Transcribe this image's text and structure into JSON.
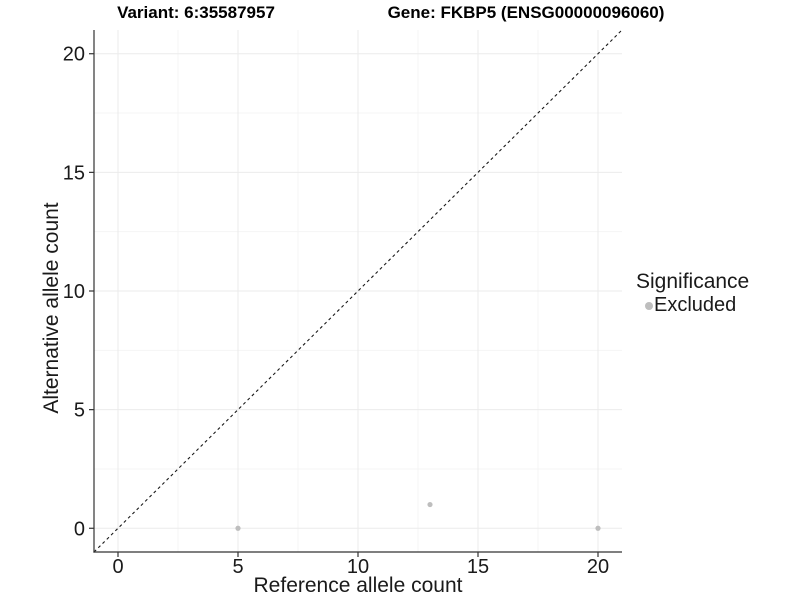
{
  "figure": {
    "titles": {
      "left": "Variant: 6:35587957",
      "right": "Gene: FKBP5 (ENSG00000096060)"
    }
  },
  "chart_data": {
    "type": "scatter",
    "title_left": "Variant: 6:35587957",
    "title_right": "Gene: FKBP5 (ENSG00000096060)",
    "xlabel": "Reference allele count",
    "ylabel": "Alternative allele count",
    "x_domain": [
      -1,
      21
    ],
    "y_domain": [
      -1,
      21
    ],
    "x_ticks": [
      0,
      5,
      10,
      15,
      20
    ],
    "y_ticks": [
      0,
      5,
      10,
      15,
      20
    ],
    "x_minor_ticks": [
      2.5,
      7.5,
      12.5,
      17.5
    ],
    "y_minor_ticks": [
      2.5,
      7.5,
      12.5,
      17.5
    ],
    "grid": true,
    "points": [
      {
        "x": 5,
        "y": 0,
        "significance": "Excluded"
      },
      {
        "x": 13,
        "y": 1,
        "significance": "Excluded"
      },
      {
        "x": 20,
        "y": 0,
        "significance": "Excluded"
      }
    ],
    "reference_line": {
      "type": "identity",
      "style": "dashed",
      "from": [
        -1,
        -1
      ],
      "to": [
        21,
        21
      ]
    },
    "legend": {
      "title": "Significance",
      "position": "right",
      "items": [
        {
          "label": "Excluded",
          "color": "#bebebe"
        }
      ]
    },
    "colors": {
      "point": "#bebebe",
      "axis_line": "#333333",
      "tick_text": "#1a1a1a",
      "grid_major": "#ebebeb",
      "grid_minor": "#f4f4f4",
      "dashed_line": "#1a1a1a"
    }
  }
}
